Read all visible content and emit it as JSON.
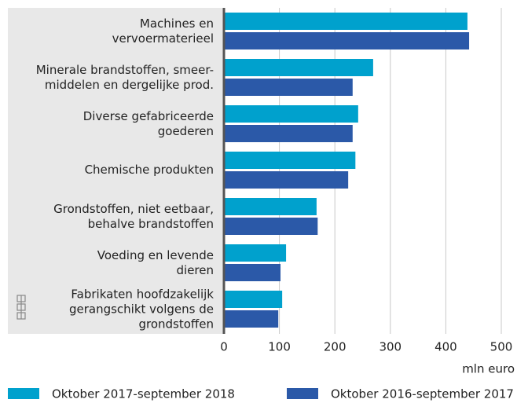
{
  "chart_data": {
    "type": "hbar",
    "categories": [
      "Machines en\nvervoermaterieel",
      "Minerale brandstoffen, smeer-\nmiddelen en dergelijke prod.",
      "Diverse gefabriceerde\ngoederen",
      "Chemische produkten",
      "Grondstoffen, niet eetbaar,\nbehalve brandstoffen",
      "Voeding en levende\ndieren",
      "Fabrikaten hoofdzakelijk\ngerangschikt volgens de\ngrondstoffen"
    ],
    "series": [
      {
        "name": "Oktober 2017-september 2018",
        "color": "#00a1cd",
        "values": [
          439,
          269,
          242,
          237,
          167,
          112,
          105
        ]
      },
      {
        "name": "Oktober 2016-september 2017",
        "color": "#2b59a8",
        "values": [
          442,
          232,
          232,
          224,
          169,
          102,
          98
        ]
      }
    ],
    "xlabel": "mln euro",
    "xlim": [
      0,
      500
    ],
    "xticks": [
      0,
      100,
      200,
      300,
      400,
      500
    ],
    "grid": true
  }
}
